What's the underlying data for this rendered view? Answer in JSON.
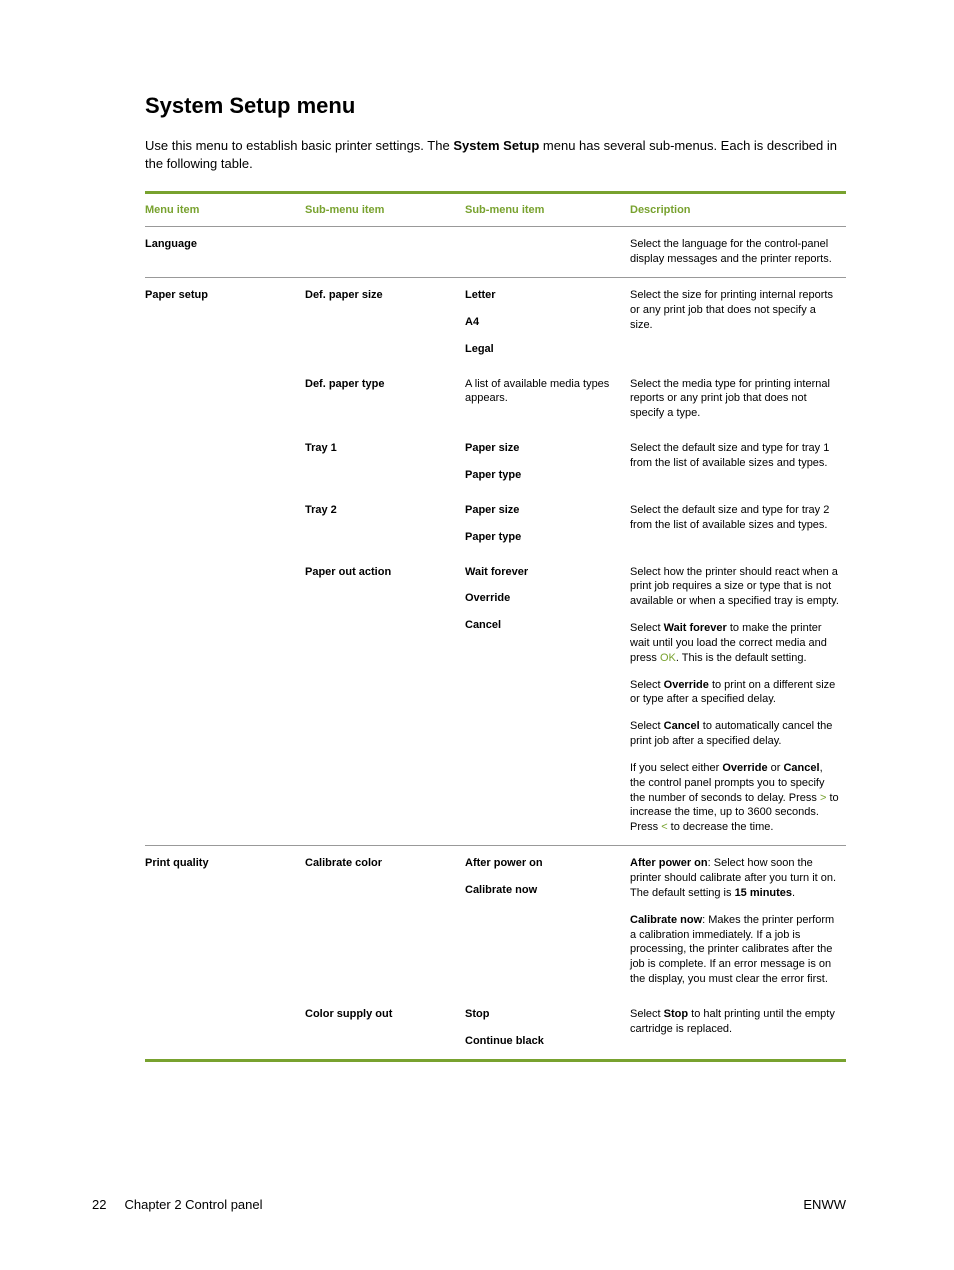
{
  "title": "System Setup menu",
  "intro_parts": [
    "Use this menu to establish basic printer settings. The ",
    "System Setup",
    " menu has several sub-menus. Each is described in the following table."
  ],
  "headers": {
    "menu": "Menu item",
    "sub1": "Sub-menu item",
    "sub2": "Sub-menu item",
    "desc": "Description"
  },
  "rows": {
    "language": {
      "menu": "Language",
      "desc": "Select the language for the control-panel display messages and the printer reports."
    },
    "paper_setup": {
      "menu": "Paper setup",
      "def_paper_size": {
        "label": "Def. paper size",
        "options": [
          "Letter",
          "A4",
          "Legal"
        ],
        "desc": "Select the size for printing internal reports or any print job that does not specify a size."
      },
      "def_paper_type": {
        "label": "Def. paper type",
        "sub2": "A list of available media types appears.",
        "desc": "Select the media type for printing internal reports or any print job that does not specify a type."
      },
      "tray1": {
        "label": "Tray 1",
        "options": [
          "Paper size",
          "Paper type"
        ],
        "desc": "Select the default size and type for tray 1 from the list of available sizes and types."
      },
      "tray2": {
        "label": "Tray 2",
        "options": [
          "Paper size",
          "Paper type"
        ],
        "desc": "Select the default size and type for tray 2 from the list of available sizes and types."
      },
      "paper_out": {
        "label": "Paper out action",
        "options": [
          "Wait forever",
          "Override",
          "Cancel"
        ],
        "desc_p1": "Select how the printer should react when a print job requires a size or type that is not available or when a specified tray is empty.",
        "desc_p2_a": "Select ",
        "desc_p2_b": "Wait forever",
        "desc_p2_c": " to make the printer wait until you load the correct media and press ",
        "desc_p2_d": "OK",
        "desc_p2_e": ". This is the default setting.",
        "desc_p3_a": "Select ",
        "desc_p3_b": "Override",
        "desc_p3_c": " to print on a different size or type after a specified delay.",
        "desc_p4_a": "Select ",
        "desc_p4_b": "Cancel",
        "desc_p4_c": " to automatically cancel the print job after a specified delay.",
        "desc_p5_a": "If you select either ",
        "desc_p5_b": "Override",
        "desc_p5_c": " or ",
        "desc_p5_d": "Cancel",
        "desc_p5_e": ", the control panel prompts you to specify the number of seconds to delay. Press ",
        "desc_p5_f": ">",
        "desc_p5_g": " to increase the time, up to 3600 seconds. Press ",
        "desc_p5_h": "<",
        "desc_p5_i": " to decrease the time."
      }
    },
    "print_quality": {
      "menu": "Print quality",
      "calibrate_color": {
        "label": "Calibrate color",
        "options": [
          "After power on",
          "Calibrate now"
        ],
        "desc_p1_a": "After power on",
        "desc_p1_b": ": Select how soon the printer should calibrate after you turn it on. The default setting is ",
        "desc_p1_c": "15 minutes",
        "desc_p1_d": ".",
        "desc_p2_a": "Calibrate now",
        "desc_p2_b": ": Makes the printer perform a calibration immediately. If a job is processing, the printer calibrates after the job is complete. If an error message is on the display, you must clear the error first."
      },
      "color_supply_out": {
        "label": "Color supply out",
        "options": [
          "Stop",
          "Continue black"
        ],
        "desc_a": "Select ",
        "desc_b": "Stop",
        "desc_c": " to halt printing until the empty cartridge is replaced."
      }
    }
  },
  "footer": {
    "page": "22",
    "chapter": "Chapter 2   Control panel",
    "right": "ENWW"
  }
}
